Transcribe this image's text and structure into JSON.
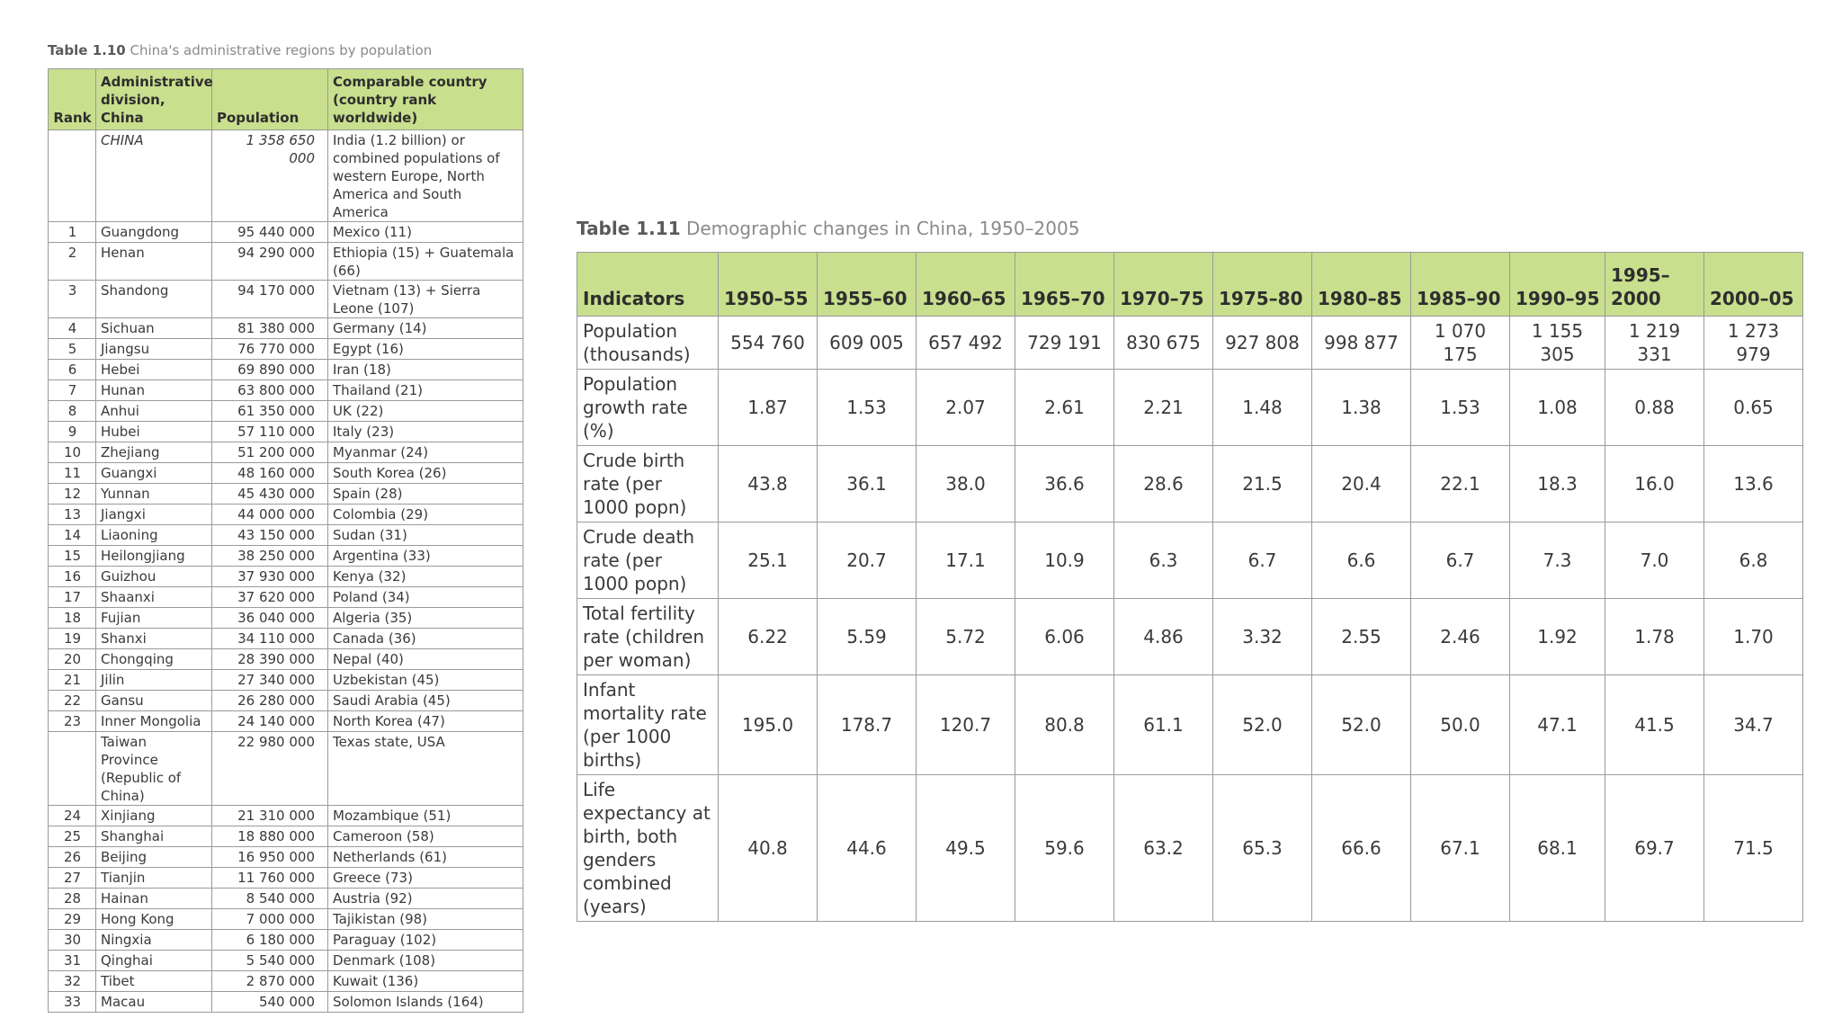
{
  "table10": {
    "caption_num": "Table 1.10",
    "caption_text": "China's administrative regions by population",
    "headers": {
      "rank": "Rank",
      "division": "Administrative division, China",
      "population": "Population",
      "country": "Comparable country (country rank worldwide)"
    },
    "rows": [
      {
        "rank": "",
        "name": "CHINA",
        "population": "1 358 650 000",
        "country": "India (1.2 billion) or combined populations of western Europe, North America and South America"
      },
      {
        "rank": "1",
        "name": "Guangdong",
        "population": "95 440 000",
        "country": "Mexico (11)"
      },
      {
        "rank": "2",
        "name": "Henan",
        "population": "94 290 000",
        "country": "Ethiopia (15) + Guatemala (66)"
      },
      {
        "rank": "3",
        "name": "Shandong",
        "population": "94 170 000",
        "country": "Vietnam (13) + Sierra Leone (107)"
      },
      {
        "rank": "4",
        "name": "Sichuan",
        "population": "81 380 000",
        "country": "Germany (14)"
      },
      {
        "rank": "5",
        "name": "Jiangsu",
        "population": "76 770 000",
        "country": "Egypt (16)"
      },
      {
        "rank": "6",
        "name": "Hebei",
        "population": "69 890 000",
        "country": "Iran (18)"
      },
      {
        "rank": "7",
        "name": "Hunan",
        "population": "63 800 000",
        "country": "Thailand (21)"
      },
      {
        "rank": "8",
        "name": "Anhui",
        "population": "61 350 000",
        "country": "UK (22)"
      },
      {
        "rank": "9",
        "name": "Hubei",
        "population": "57 110 000",
        "country": "Italy (23)"
      },
      {
        "rank": "10",
        "name": "Zhejiang",
        "population": "51 200 000",
        "country": "Myanmar (24)"
      },
      {
        "rank": "11",
        "name": "Guangxi",
        "population": "48 160 000",
        "country": "South Korea (26)"
      },
      {
        "rank": "12",
        "name": "Yunnan",
        "population": "45 430 000",
        "country": "Spain (28)"
      },
      {
        "rank": "13",
        "name": "Jiangxi",
        "population": "44 000 000",
        "country": "Colombia (29)"
      },
      {
        "rank": "14",
        "name": "Liaoning",
        "population": "43 150 000",
        "country": "Sudan (31)"
      },
      {
        "rank": "15",
        "name": "Heilongjiang",
        "population": "38 250 000",
        "country": "Argentina (33)"
      },
      {
        "rank": "16",
        "name": "Guizhou",
        "population": "37 930 000",
        "country": "Kenya (32)"
      },
      {
        "rank": "17",
        "name": "Shaanxi",
        "population": "37 620 000",
        "country": "Poland (34)"
      },
      {
        "rank": "18",
        "name": "Fujian",
        "population": "36 040 000",
        "country": "Algeria (35)"
      },
      {
        "rank": "19",
        "name": "Shanxi",
        "population": "34 110 000",
        "country": "Canada (36)"
      },
      {
        "rank": "20",
        "name": "Chongqing",
        "population": "28 390 000",
        "country": "Nepal (40)"
      },
      {
        "rank": "21",
        "name": "Jilin",
        "population": "27 340 000",
        "country": "Uzbekistan (45)"
      },
      {
        "rank": "22",
        "name": "Gansu",
        "population": "26 280 000",
        "country": "Saudi Arabia (45)"
      },
      {
        "rank": "23",
        "name": "Inner Mongolia",
        "population": "24 140 000",
        "country": "North Korea (47)"
      },
      {
        "rank": "",
        "name": "Taiwan Province (Republic of China)",
        "population": "22 980 000",
        "country": "Texas state, USA"
      },
      {
        "rank": "24",
        "name": "Xinjiang",
        "population": "21 310 000",
        "country": "Mozambique (51)"
      },
      {
        "rank": "25",
        "name": "Shanghai",
        "population": "18 880 000",
        "country": "Cameroon (58)"
      },
      {
        "rank": "26",
        "name": "Beijing",
        "population": "16 950 000",
        "country": "Netherlands (61)"
      },
      {
        "rank": "27",
        "name": "Tianjin",
        "population": "11 760 000",
        "country": "Greece (73)"
      },
      {
        "rank": "28",
        "name": "Hainan",
        "population": "8 540 000",
        "country": "Austria (92)"
      },
      {
        "rank": "29",
        "name": "Hong Kong",
        "population": "7 000 000",
        "country": "Tajikistan (98)"
      },
      {
        "rank": "30",
        "name": "Ningxia",
        "population": "6 180 000",
        "country": "Paraguay (102)"
      },
      {
        "rank": "31",
        "name": "Qinghai",
        "population": "5 540 000",
        "country": "Denmark (108)"
      },
      {
        "rank": "32",
        "name": "Tibet",
        "population": "2 870 000",
        "country": "Kuwait (136)"
      },
      {
        "rank": "33",
        "name": "Macau",
        "population": "540 000",
        "country": "Solomon Islands (164)"
      }
    ]
  },
  "table11": {
    "caption_num": "Table 1.11",
    "caption_text": "Demographic changes in China, 1950–2005",
    "indicator_header": "Indicators",
    "periods": [
      "1950–55",
      "1955–60",
      "1960–65",
      "1965–70",
      "1970–75",
      "1975–80",
      "1980–85",
      "1985–90",
      "1990–95",
      "1995–2000",
      "2000–05"
    ],
    "rows": [
      {
        "label": "Population (thousands)",
        "values": [
          "554 760",
          "609 005",
          "657 492",
          "729 191",
          "830 675",
          "927 808",
          "998 877",
          "1 070 175",
          "1 155 305",
          "1 219 331",
          "1 273 979"
        ]
      },
      {
        "label": "Population growth rate (%)",
        "values": [
          "1.87",
          "1.53",
          "2.07",
          "2.61",
          "2.21",
          "1.48",
          "1.38",
          "1.53",
          "1.08",
          "0.88",
          "0.65"
        ]
      },
      {
        "label": "Crude birth rate (per 1000 popn)",
        "values": [
          "43.8",
          "36.1",
          "38.0",
          "36.6",
          "28.6",
          "21.5",
          "20.4",
          "22.1",
          "18.3",
          "16.0",
          "13.6"
        ]
      },
      {
        "label": "Crude death rate (per 1000 popn)",
        "values": [
          "25.1",
          "20.7",
          "17.1",
          "10.9",
          "6.3",
          "6.7",
          "6.6",
          "6.7",
          "7.3",
          "7.0",
          "6.8"
        ]
      },
      {
        "label": "Total fertility rate (children per woman)",
        "values": [
          "6.22",
          "5.59",
          "5.72",
          "6.06",
          "4.86",
          "3.32",
          "2.55",
          "2.46",
          "1.92",
          "1.78",
          "1.70"
        ]
      },
      {
        "label": "Infant mortality rate (per 1000 births)",
        "values": [
          "195.0",
          "178.7",
          "120.7",
          "80.8",
          "61.1",
          "52.0",
          "52.0",
          "50.0",
          "47.1",
          "41.5",
          "34.7"
        ]
      },
      {
        "label": "Life expectancy at birth, both genders combined (years)",
        "values": [
          "40.8",
          "44.6",
          "49.5",
          "59.6",
          "63.2",
          "65.3",
          "66.6",
          "67.1",
          "68.1",
          "69.7",
          "71.5"
        ]
      }
    ]
  }
}
